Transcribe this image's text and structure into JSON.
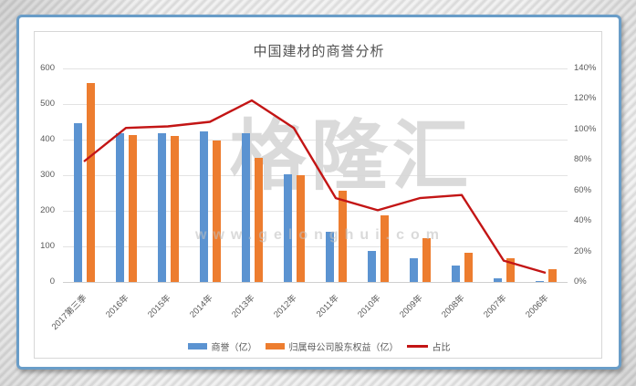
{
  "chart_data": {
    "type": "bar",
    "subtype": "grouped bars with line on secondary axis",
    "title": "中国建材的商誉分析",
    "categories": [
      "2017第三季",
      "2016年",
      "2015年",
      "2014年",
      "2013年",
      "2012年",
      "2011年",
      "2010年",
      "2009年",
      "2008年",
      "2007年",
      "2006年"
    ],
    "series": [
      {
        "name": "商誉（亿）",
        "type": "bar",
        "color": "#5b93d1",
        "axis": "left",
        "values": [
          445,
          418,
          419,
          422,
          419,
          303,
          142,
          86,
          67,
          47,
          9,
          2
        ]
      },
      {
        "name": "归属母公司股东权益（亿）",
        "type": "bar",
        "color": "#ed7d2f",
        "axis": "left",
        "values": [
          560,
          412,
          410,
          397,
          349,
          300,
          257,
          186,
          122,
          82,
          67,
          37
        ]
      },
      {
        "name": "占比",
        "type": "line",
        "color": "#c31515",
        "axis": "right",
        "values": [
          79,
          101,
          102,
          105,
          119,
          101,
          55,
          47,
          55,
          57,
          14,
          6
        ],
        "unit": "%"
      }
    ],
    "left_axis": {
      "min": 0,
      "max": 600,
      "step": 100,
      "ticks": [
        "600",
        "500",
        "400",
        "300",
        "200",
        "100",
        "0"
      ]
    },
    "right_axis": {
      "min": 0,
      "max": 140,
      "step": 20,
      "unit": "%",
      "ticks": [
        "140%",
        "120%",
        "100%",
        "80%",
        "60%",
        "40%",
        "20%",
        "0%"
      ]
    },
    "legend_position": "bottom",
    "grid": true
  },
  "watermark": {
    "brand": "格隆汇",
    "url_text": "www.gelonghui.com"
  }
}
